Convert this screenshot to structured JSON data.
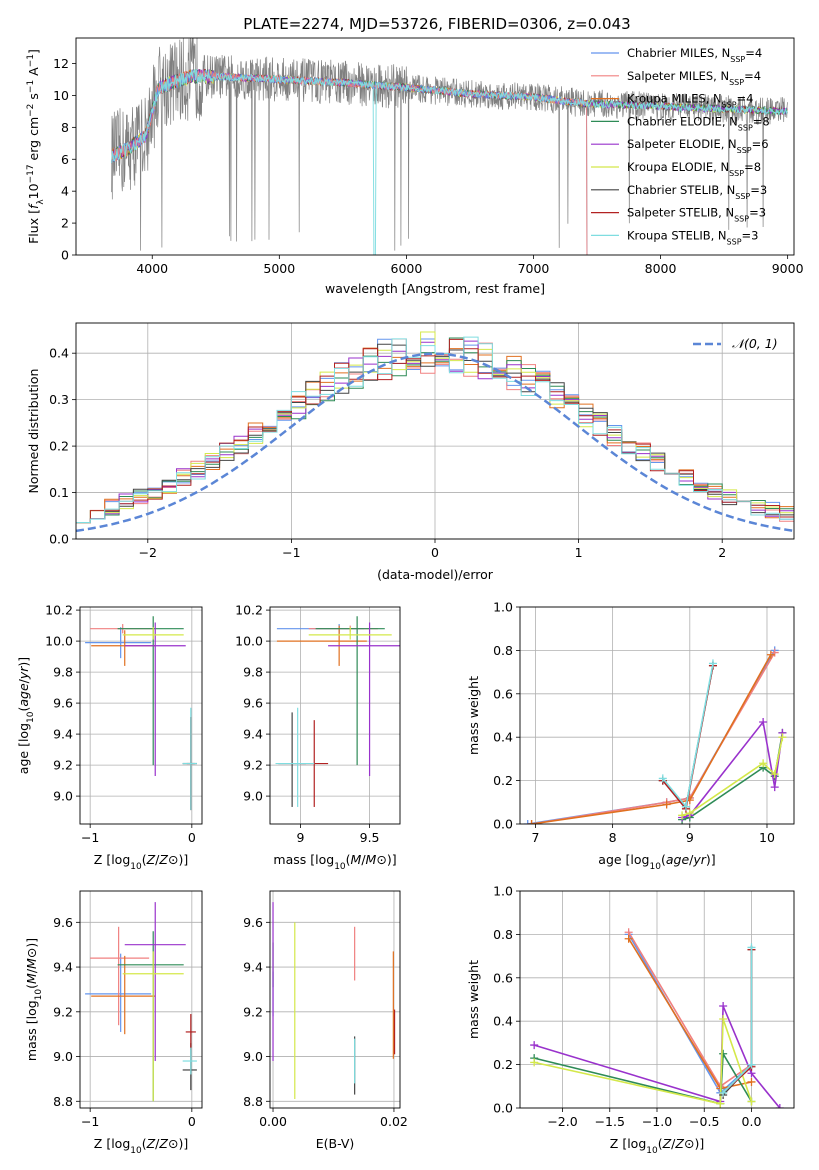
{
  "title": "PLATE=2274, MJD=53726, FIBERID=0306, z=0.043",
  "colors": {
    "c0": "#6495ED",
    "c1": "#F08080",
    "c2": "#E07020",
    "c3": "#2E8B57",
    "c4": "#9932CC",
    "c5": "#D4E84A",
    "c6": "#444444",
    "c7": "#B22222",
    "c8": "#7FDDE0",
    "data": "#808080",
    "grid": "#b0b0b0",
    "normal": "#5B86D6"
  },
  "legend_labels": [
    "Chabrier MILES, N",
    "Salpeter MILES, N",
    "Kroupa MILES, N",
    "Chabrier ELODIE, N",
    "Salpeter ELODIE, N",
    "Kroupa ELODIE, N",
    "Chabrier STELIB, N",
    "Salpeter STELIB, N",
    "Kroupa STELIB, N"
  ],
  "legend_sub": "SSP",
  "legend_counts": [
    "=4",
    "=4",
    "=4",
    "=8",
    "=6",
    "=8",
    "=3",
    "=3",
    "=3"
  ],
  "chart_data": [
    {
      "type": "line",
      "id": "spectrum",
      "xlabel": "wavelength [Angstrom, rest frame]",
      "ylabel_parts": [
        "Flux [",
        "f",
        "λ",
        "10",
        "−17",
        " erg cm",
        "−2",
        " s",
        "−1",
        " A",
        "−1",
        "]"
      ],
      "xlim": [
        3400,
        9050
      ],
      "ylim": [
        0,
        13.6
      ],
      "xticks": [
        4000,
        5000,
        6000,
        7000,
        8000,
        9000
      ],
      "yticks": [
        0,
        2,
        4,
        6,
        8,
        10,
        12
      ],
      "model_anchors_x": [
        3680,
        3800,
        3950,
        4050,
        4300,
        4500,
        5000,
        5500,
        6000,
        6500,
        7000,
        7400
      ],
      "model_anchors_y": [
        6.2,
        6.6,
        7.5,
        10.5,
        11.2,
        11.2,
        11.0,
        10.8,
        10.5,
        10.1,
        9.9,
        9.5
      ],
      "spectrum_end_miles": 7420,
      "spectrum_end_stelib": 9000
    },
    {
      "type": "bar",
      "id": "residuals",
      "xlabel": "(data-model)/error",
      "ylabel": "Normed distribution",
      "xlim": [
        -2.5,
        2.5
      ],
      "ylim": [
        0,
        0.465
      ],
      "xticks": [
        -2,
        -1,
        0,
        1,
        2
      ],
      "yticks": [
        0.0,
        0.1,
        0.2,
        0.3,
        0.4
      ],
      "legend": "𝒩(0, 1)",
      "bin_width": 0.1
    },
    {
      "type": "scatter",
      "id": "age_vs_Z",
      "xlabel": "Z [log10(Z/Z⊙)]",
      "ylabel": "age  [log10(age/yr)]",
      "xlim": [
        -1.1,
        0.1
      ],
      "ylim": [
        8.82,
        10.22
      ],
      "xticks": [
        -1,
        0
      ],
      "yticks": [
        9.0,
        9.2,
        9.4,
        9.6,
        9.8,
        10.0,
        10.2
      ],
      "points": [
        {
          "s": 0,
          "x": -0.7,
          "y": 9.99,
          "xerr": [
            0.35,
            0.3
          ],
          "yerr": [
            0.1,
            0.1
          ]
        },
        {
          "s": 1,
          "x": -0.68,
          "y": 10.08,
          "xerr": [
            0.32,
            0.3
          ],
          "yerr": [
            0.03,
            0.03
          ]
        },
        {
          "s": 2,
          "x": -0.66,
          "y": 9.97,
          "xerr": [
            0.33,
            0.3
          ],
          "yerr": [
            0.13,
            0.1
          ]
        },
        {
          "s": 3,
          "x": -0.38,
          "y": 10.08,
          "xerr": [
            0.35,
            0.3
          ],
          "yerr": [
            0.88,
            0.08
          ]
        },
        {
          "s": 4,
          "x": -0.36,
          "y": 9.97,
          "xerr": [
            0.3,
            0.3
          ],
          "yerr": [
            0.84,
            0.15
          ]
        },
        {
          "s": 5,
          "x": -0.38,
          "y": 10.04,
          "xerr": [
            0.3,
            0.3
          ],
          "yerr": [
            0.03,
            0.05
          ]
        },
        {
          "s": 6,
          "x": -0.01,
          "y": 9.21,
          "xerr": [
            0.08,
            0.06
          ],
          "yerr": [
            0.3,
            0.3
          ]
        },
        {
          "s": 7,
          "x": -0.01,
          "y": 9.21,
          "xerr": [
            0.04,
            0.04
          ],
          "yerr": [
            0.3,
            0.3
          ]
        },
        {
          "s": 8,
          "x": -0.01,
          "y": 9.21,
          "xerr": [
            0.08,
            0.06
          ],
          "yerr": [
            0.3,
            0.36
          ]
        }
      ]
    },
    {
      "type": "scatter",
      "id": "age_vs_mass",
      "xlabel": "mass [log10(M/M⊙)]",
      "ylabel": "",
      "xlim": [
        8.78,
        9.72
      ],
      "ylim": [
        8.82,
        10.22
      ],
      "xticks": [
        9.0,
        9.5
      ],
      "yticks": [
        9.0,
        9.2,
        9.4,
        9.6,
        9.8,
        10.0,
        10.2
      ],
      "points": [
        {
          "s": 0,
          "x": 9.28,
          "y": 10.08,
          "xerr": [
            0.45,
            0.18
          ],
          "yerr": [
            0.03,
            0.03
          ]
        },
        {
          "s": 1,
          "x": 9.36,
          "y": 10.08,
          "xerr": [
            0.3,
            0.2
          ],
          "yerr": [
            0.02,
            0.02
          ]
        },
        {
          "s": 2,
          "x": 9.28,
          "y": 10.0,
          "xerr": [
            0.45,
            0.2
          ],
          "yerr": [
            0.16,
            0.1
          ]
        },
        {
          "s": 3,
          "x": 9.41,
          "y": 10.08,
          "xerr": [
            0.3,
            0.2
          ],
          "yerr": [
            0.88,
            0.08
          ]
        },
        {
          "s": 4,
          "x": 9.5,
          "y": 9.97,
          "xerr": [
            0.3,
            0.3
          ],
          "yerr": [
            0.84,
            0.15
          ]
        },
        {
          "s": 5,
          "x": 9.36,
          "y": 10.04,
          "xerr": [
            0.3,
            0.3
          ],
          "yerr": [
            0.03,
            0.05
          ]
        },
        {
          "s": 6,
          "x": 8.94,
          "y": 9.21,
          "xerr": [
            0.1,
            0.1
          ],
          "yerr": [
            0.28,
            0.33
          ]
        },
        {
          "s": 7,
          "x": 9.1,
          "y": 9.21,
          "xerr": [
            0.1,
            0.1
          ],
          "yerr": [
            0.28,
            0.28
          ]
        },
        {
          "s": 8,
          "x": 8.98,
          "y": 9.21,
          "xerr": [
            0.16,
            0.12
          ],
          "yerr": [
            0.28,
            0.36
          ]
        }
      ]
    },
    {
      "type": "line",
      "id": "weight_vs_age",
      "xlabel": "age  [log10(age/yr)]",
      "ylabel": "mass weight",
      "xlim": [
        6.8,
        10.35
      ],
      "ylim": [
        0,
        1.0
      ],
      "xticks": [
        7,
        8,
        9,
        10
      ],
      "yticks": [
        0.0,
        0.2,
        0.4,
        0.6,
        0.8,
        1.0
      ],
      "series": [
        {
          "s": 0,
          "x": [
            6.9,
            8.7,
            9.0,
            10.1
          ],
          "y": [
            0.0,
            0.1,
            0.12,
            0.8
          ]
        },
        {
          "s": 1,
          "x": [
            6.95,
            8.7,
            9.0,
            10.1
          ],
          "y": [
            0.0,
            0.1,
            0.12,
            0.79
          ]
        },
        {
          "s": 2,
          "x": [
            6.95,
            8.7,
            9.0,
            10.05
          ],
          "y": [
            0.0,
            0.09,
            0.11,
            0.78
          ]
        },
        {
          "s": 3,
          "x": [
            8.9,
            9.0,
            9.95,
            10.1,
            10.2
          ],
          "y": [
            0.02,
            0.03,
            0.26,
            0.22,
            0.42
          ]
        },
        {
          "s": 4,
          "x": [
            8.9,
            9.0,
            9.95,
            10.1,
            10.2
          ],
          "y": [
            0.03,
            0.04,
            0.47,
            0.17,
            0.42
          ]
        },
        {
          "s": 5,
          "x": [
            8.9,
            9.0,
            9.95,
            10.1,
            10.2
          ],
          "y": [
            0.04,
            0.05,
            0.28,
            0.23,
            0.4
          ]
        },
        {
          "s": 6,
          "x": [
            8.65,
            8.95,
            9.3
          ],
          "y": [
            0.2,
            0.08,
            0.73
          ]
        },
        {
          "s": 7,
          "x": [
            8.65,
            8.95,
            9.3
          ],
          "y": [
            0.2,
            0.07,
            0.73
          ]
        },
        {
          "s": 8,
          "x": [
            8.65,
            8.95,
            9.3
          ],
          "y": [
            0.21,
            0.08,
            0.74
          ]
        }
      ]
    },
    {
      "type": "scatter",
      "id": "mass_vs_Z",
      "xlabel": "Z [log10(Z/Z⊙)]",
      "ylabel": "mass [log10(M/M⊙)]",
      "xlim": [
        -1.1,
        0.1
      ],
      "ylim": [
        8.77,
        9.74
      ],
      "xticks": [
        -1,
        0
      ],
      "yticks": [
        8.8,
        9.0,
        9.2,
        9.4,
        9.6
      ],
      "points": [
        {
          "s": 0,
          "x": -0.7,
          "y": 9.28,
          "xerr": [
            0.35,
            0.3
          ],
          "yerr": [
            0.17,
            0.18
          ]
        },
        {
          "s": 1,
          "x": -0.72,
          "y": 9.44,
          "xerr": [
            0.28,
            0.3
          ],
          "yerr": [
            0.3,
            0.14
          ]
        },
        {
          "s": 2,
          "x": -0.66,
          "y": 9.27,
          "xerr": [
            0.33,
            0.3
          ],
          "yerr": [
            0.17,
            0.18
          ]
        },
        {
          "s": 3,
          "x": -0.38,
          "y": 9.41,
          "xerr": [
            0.35,
            0.3
          ],
          "yerr": [
            0.61,
            0.15
          ]
        },
        {
          "s": 4,
          "x": -0.36,
          "y": 9.5,
          "xerr": [
            0.3,
            0.3
          ],
          "yerr": [
            0.52,
            0.19
          ]
        },
        {
          "s": 5,
          "x": -0.38,
          "y": 9.37,
          "xerr": [
            0.3,
            0.3
          ],
          "yerr": [
            0.57,
            0.1
          ]
        },
        {
          "s": 6,
          "x": -0.01,
          "y": 8.94,
          "xerr": [
            0.08,
            0.06
          ],
          "yerr": [
            0.09,
            0.12
          ]
        },
        {
          "s": 7,
          "x": -0.01,
          "y": 9.11,
          "xerr": [
            0.05,
            0.05
          ],
          "yerr": [
            0.08,
            0.08
          ]
        },
        {
          "s": 8,
          "x": -0.01,
          "y": 8.98,
          "xerr": [
            0.08,
            0.06
          ],
          "yerr": [
            0.06,
            0.06
          ]
        }
      ]
    },
    {
      "type": "scatter",
      "id": "mass_vs_ebv",
      "xlabel": "E(B-V)",
      "ylabel": "",
      "xlim": [
        -0.0005,
        0.021
      ],
      "ylim": [
        8.77,
        9.74
      ],
      "xticks": [
        0.0,
        0.02
      ],
      "xticklabels": [
        "0.00",
        "0.02"
      ],
      "yticks": [
        8.8,
        9.0,
        9.2,
        9.4,
        9.6
      ],
      "points": [
        {
          "s": 0,
          "x": 0.0,
          "y": 9.28,
          "yerr": [
            0.1,
            0.1
          ]
        },
        {
          "s": 1,
          "x": 0.0135,
          "y": 9.44,
          "yerr": [
            0.1,
            0.14
          ]
        },
        {
          "s": 2,
          "x": 0.0199,
          "y": 9.27,
          "yerr": [
            0.28,
            0.2
          ]
        },
        {
          "s": 3,
          "x": 0.0,
          "y": 9.41,
          "yerr": [
            0.1,
            0.1
          ]
        },
        {
          "s": 4,
          "x": 0.0,
          "y": 9.5,
          "yerr": [
            0.52,
            0.19
          ]
        },
        {
          "s": 5,
          "x": 0.0036,
          "y": 9.37,
          "yerr": [
            0.56,
            0.23
          ]
        },
        {
          "s": 6,
          "x": 0.0135,
          "y": 8.94,
          "yerr": [
            0.11,
            0.15
          ]
        },
        {
          "s": 7,
          "x": 0.0201,
          "y": 9.11,
          "yerr": [
            0.1,
            0.1
          ]
        },
        {
          "s": 8,
          "x": 0.0135,
          "y": 8.98,
          "yerr": [
            0.1,
            0.1
          ]
        }
      ]
    },
    {
      "type": "line",
      "id": "weight_vs_Z",
      "xlabel": "Z [log10(Z/Z⊙)]",
      "ylabel": "mass weight",
      "xlim": [
        -2.45,
        0.45
      ],
      "ylim": [
        0,
        1.0
      ],
      "xticks": [
        -2.0,
        -1.5,
        -1.0,
        -0.5,
        0.0
      ],
      "xticklabels": [
        "−2.0",
        "−1.5",
        "−1.0",
        "−0.5",
        "0.0"
      ],
      "yticks": [
        0.0,
        0.2,
        0.4,
        0.6,
        0.8,
        1.0
      ],
      "series": [
        {
          "s": 0,
          "x": [
            -1.3,
            -0.33,
            0.0
          ],
          "y": [
            0.8,
            0.07,
            0.2
          ]
        },
        {
          "s": 1,
          "x": [
            -1.3,
            -0.33,
            0.0
          ],
          "y": [
            0.81,
            0.1,
            0.2
          ]
        },
        {
          "s": 2,
          "x": [
            -1.3,
            -0.33,
            0.0
          ],
          "y": [
            0.78,
            0.09,
            0.12
          ]
        },
        {
          "s": 3,
          "x": [
            -2.3,
            -0.33,
            -0.3,
            0.0
          ],
          "y": [
            0.23,
            0.02,
            0.25,
            0.03
          ]
        },
        {
          "s": 4,
          "x": [
            -2.3,
            -0.33,
            -0.3,
            0.0,
            0.3
          ],
          "y": [
            0.29,
            0.03,
            0.47,
            0.16,
            0.0
          ]
        },
        {
          "s": 5,
          "x": [
            -2.3,
            -0.33,
            -0.3,
            0.0
          ],
          "y": [
            0.21,
            0.02,
            0.41,
            0.03
          ]
        },
        {
          "s": 6,
          "x": [
            -0.3,
            0.0,
            0.0
          ],
          "y": [
            0.06,
            0.2,
            0.73
          ]
        },
        {
          "s": 7,
          "x": [
            -0.3,
            0.0,
            0.0
          ],
          "y": [
            0.07,
            0.19,
            0.73
          ]
        },
        {
          "s": 8,
          "x": [
            -0.3,
            0.0,
            0.0
          ],
          "y": [
            0.07,
            0.2,
            0.74
          ]
        }
      ]
    }
  ]
}
